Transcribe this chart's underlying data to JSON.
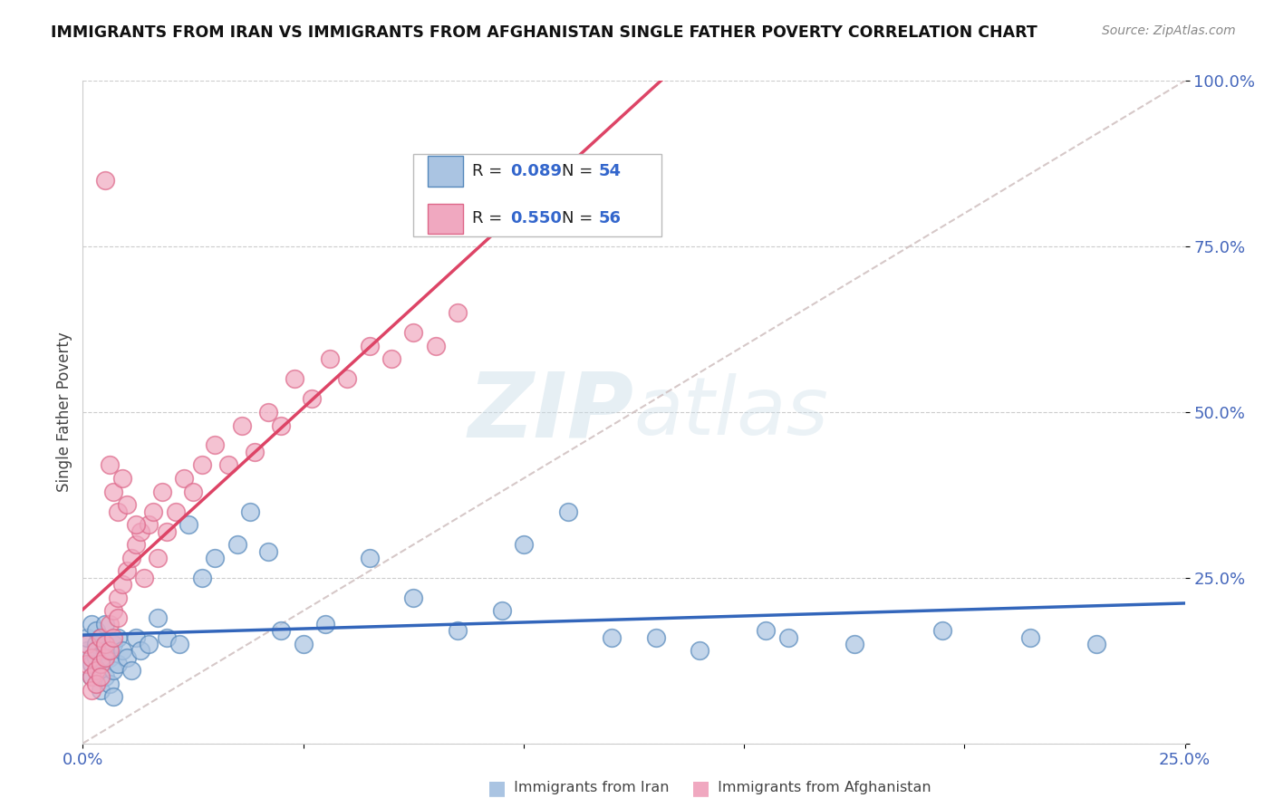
{
  "title": "IMMIGRANTS FROM IRAN VS IMMIGRANTS FROM AFGHANISTAN SINGLE FATHER POVERTY CORRELATION CHART",
  "source": "Source: ZipAtlas.com",
  "ylabel": "Single Father Poverty",
  "xlim": [
    0.0,
    0.25
  ],
  "ylim": [
    0.0,
    1.0
  ],
  "iran_R": 0.089,
  "iran_N": 54,
  "afghan_R": 0.55,
  "afghan_N": 56,
  "iran_color": "#aac4e2",
  "afghan_color": "#f0a8c0",
  "iran_edge_color": "#5588bb",
  "afghan_edge_color": "#dd6688",
  "iran_line_color": "#3366bb",
  "afghan_line_color": "#dd4466",
  "diagonal_color": "#ccbbbb",
  "background_color": "#ffffff",
  "grid_color": "#cccccc",
  "watermark_color": "#d8e8f0",
  "iran_x": [
    0.001,
    0.001,
    0.002,
    0.002,
    0.002,
    0.003,
    0.003,
    0.003,
    0.004,
    0.004,
    0.004,
    0.005,
    0.005,
    0.005,
    0.006,
    0.006,
    0.007,
    0.007,
    0.007,
    0.008,
    0.008,
    0.009,
    0.01,
    0.011,
    0.012,
    0.013,
    0.015,
    0.017,
    0.019,
    0.022,
    0.024,
    0.027,
    0.03,
    0.035,
    0.038,
    0.042,
    0.045,
    0.05,
    0.055,
    0.065,
    0.075,
    0.085,
    0.095,
    0.11,
    0.13,
    0.155,
    0.175,
    0.195,
    0.215,
    0.23,
    0.1,
    0.12,
    0.14,
    0.16
  ],
  "iran_y": [
    0.14,
    0.16,
    0.12,
    0.18,
    0.1,
    0.15,
    0.13,
    0.17,
    0.12,
    0.16,
    0.08,
    0.14,
    0.1,
    0.18,
    0.13,
    0.09,
    0.15,
    0.11,
    0.07,
    0.12,
    0.16,
    0.14,
    0.13,
    0.11,
    0.16,
    0.14,
    0.15,
    0.19,
    0.16,
    0.15,
    0.33,
    0.25,
    0.28,
    0.3,
    0.35,
    0.29,
    0.17,
    0.15,
    0.18,
    0.28,
    0.22,
    0.17,
    0.2,
    0.35,
    0.16,
    0.17,
    0.15,
    0.17,
    0.16,
    0.15,
    0.3,
    0.16,
    0.14,
    0.16
  ],
  "afghan_x": [
    0.001,
    0.001,
    0.002,
    0.002,
    0.002,
    0.003,
    0.003,
    0.003,
    0.004,
    0.004,
    0.004,
    0.005,
    0.005,
    0.006,
    0.006,
    0.007,
    0.007,
    0.008,
    0.008,
    0.009,
    0.01,
    0.011,
    0.012,
    0.013,
    0.014,
    0.015,
    0.016,
    0.017,
    0.018,
    0.019,
    0.021,
    0.023,
    0.025,
    0.027,
    0.03,
    0.033,
    0.036,
    0.039,
    0.042,
    0.045,
    0.048,
    0.052,
    0.056,
    0.06,
    0.065,
    0.07,
    0.075,
    0.08,
    0.085,
    0.005,
    0.006,
    0.007,
    0.008,
    0.009,
    0.01,
    0.012
  ],
  "afghan_y": [
    0.12,
    0.15,
    0.1,
    0.13,
    0.08,
    0.14,
    0.11,
    0.09,
    0.12,
    0.16,
    0.1,
    0.13,
    0.15,
    0.18,
    0.14,
    0.2,
    0.16,
    0.22,
    0.19,
    0.24,
    0.26,
    0.28,
    0.3,
    0.32,
    0.25,
    0.33,
    0.35,
    0.28,
    0.38,
    0.32,
    0.35,
    0.4,
    0.38,
    0.42,
    0.45,
    0.42,
    0.48,
    0.44,
    0.5,
    0.48,
    0.55,
    0.52,
    0.58,
    0.55,
    0.6,
    0.58,
    0.62,
    0.6,
    0.65,
    0.85,
    0.42,
    0.38,
    0.35,
    0.4,
    0.36,
    0.33
  ]
}
